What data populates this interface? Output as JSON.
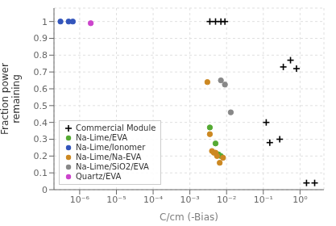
{
  "chart_data": {
    "type": "scatter",
    "title": "",
    "xlabel": "C/cm (-Bias)",
    "ylabel": "Fraction power\nremaining",
    "log": "x",
    "grid": true,
    "legend": "lower left",
    "xlim": [
      1.9952623149688795e-07,
      4.466835921509631
    ],
    "xticks": [
      {
        "value": 1e-06,
        "label": "10⁻⁶"
      },
      {
        "value": 1e-05,
        "label": "10⁻⁵"
      },
      {
        "value": 0.0001,
        "label": "10⁻⁴"
      },
      {
        "value": 0.001,
        "label": "10⁻³"
      },
      {
        "value": 0.01,
        "label": "10⁻²"
      },
      {
        "value": 0.1,
        "label": "10⁻¹"
      },
      {
        "value": 1,
        "label": "10⁰"
      }
    ],
    "ylim": [
      0.0,
      1.08
    ],
    "yticks": [
      0,
      0.1,
      0.2,
      0.3,
      0.4,
      0.5,
      0.6,
      0.7,
      0.8,
      0.9,
      1
    ],
    "series": [
      {
        "name": "Commercial Module",
        "color": "black",
        "marker": "plus",
        "x": [
          0.0035,
          0.005,
          0.007,
          0.009,
          0.15,
          0.28,
          0.55,
          0.8,
          1.5,
          2.5,
          0.12,
          0.35
        ],
        "values": [
          1.0,
          1.0,
          1.0,
          1.0,
          0.28,
          0.3,
          0.77,
          0.72,
          0.04,
          0.04,
          0.4,
          0.73
        ]
      },
      {
        "name": "Na-Lime/EVA",
        "color": "#55aa33",
        "marker": "circle",
        "x": [
          0.0035,
          0.005,
          0.006,
          0.007
        ],
        "values": [
          0.37,
          0.275,
          0.21,
          0.2
        ]
      },
      {
        "name": "Na-Lime/Ionomer",
        "color": "#3355bb",
        "marker": "circle",
        "x": [
          3e-07,
          5e-07,
          6.5e-07
        ],
        "values": [
          1.0,
          1.0,
          1.0
        ]
      },
      {
        "name": "Na-Lime/Na-EVA",
        "color": "#cc8822",
        "marker": "circle",
        "x": [
          0.003,
          0.0035,
          0.004,
          0.0045,
          0.005,
          0.0055,
          0.0065,
          0.008
        ],
        "values": [
          0.64,
          0.33,
          0.23,
          0.22,
          0.22,
          0.2,
          0.16,
          0.19
        ]
      },
      {
        "name": "Na-Lime/SiO2/EVA",
        "color": "#888888",
        "marker": "circle",
        "x": [
          0.007,
          0.009,
          0.013
        ],
        "values": [
          0.65,
          0.625,
          0.46
        ]
      },
      {
        "name": "Quartz/EVA",
        "color": "#cc44cc",
        "marker": "circle",
        "x": [
          2e-06
        ],
        "values": [
          0.99
        ]
      }
    ]
  }
}
